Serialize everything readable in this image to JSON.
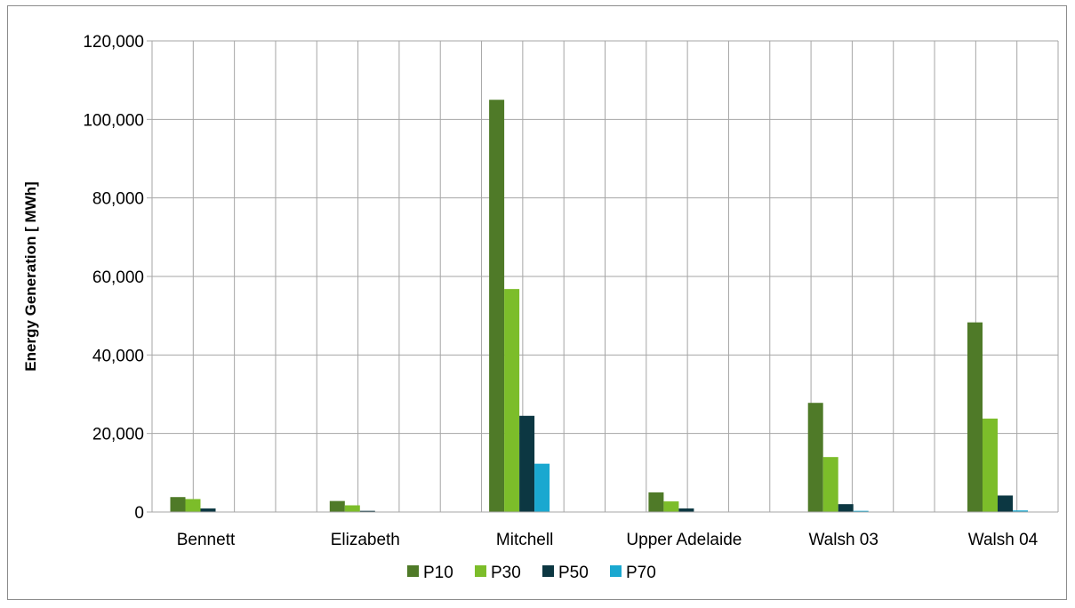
{
  "chart_data": {
    "type": "bar",
    "title": "",
    "xlabel": "",
    "ylabel": "Energy Generation [ MWh]",
    "ylim": [
      0,
      120000
    ],
    "yticks": [
      0,
      20000,
      40000,
      60000,
      80000,
      100000,
      120000
    ],
    "ytick_labels": [
      "0",
      "20,000",
      "40,000",
      "60,000",
      "80,000",
      "100,000",
      "120,000"
    ],
    "grid": "on",
    "legend_position": "bottom",
    "categories": [
      "Bennett",
      "Elizabeth",
      "Mitchell",
      "Upper Adelaide",
      "Walsh 03",
      "Walsh 04"
    ],
    "series": [
      {
        "name": "P10",
        "color": "#4f7a28",
        "values": [
          3800,
          2800,
          105000,
          5000,
          27800,
          48300
        ]
      },
      {
        "name": "P30",
        "color": "#7cbd2a",
        "values": [
          3300,
          1700,
          56800,
          2700,
          14000,
          23800
        ]
      },
      {
        "name": "P50",
        "color": "#0c3742",
        "values": [
          900,
          300,
          24500,
          900,
          2000,
          4200
        ]
      },
      {
        "name": "P70",
        "color": "#1aa8d0",
        "values": [
          100,
          50,
          12300,
          100,
          300,
          400
        ]
      }
    ]
  }
}
